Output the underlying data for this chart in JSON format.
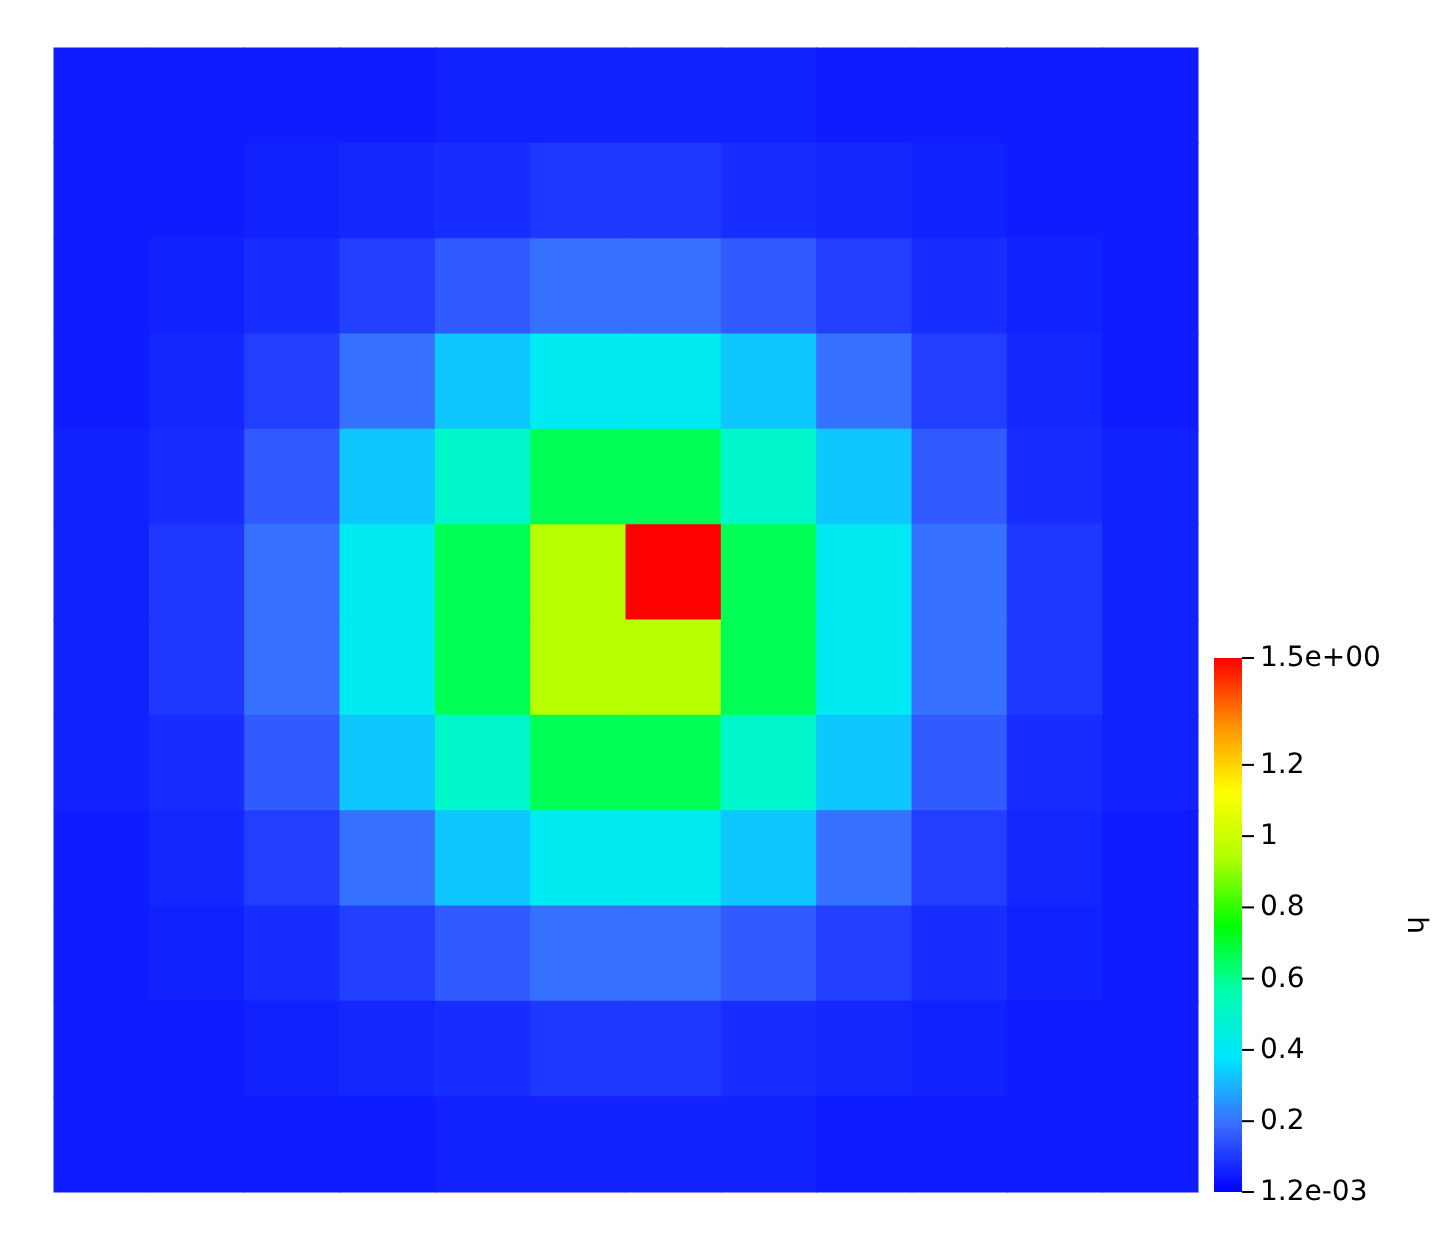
{
  "chart_data": {
    "type": "heatmap",
    "clabel": "h",
    "categories": [
      null,
      null,
      null,
      null,
      null,
      null,
      null,
      null,
      null,
      null,
      null,
      null
    ],
    "y_categories": [
      null,
      null,
      null,
      null,
      null,
      null,
      null,
      null,
      null,
      null,
      null,
      null
    ],
    "cells": [
      [
        0.05,
        0.05,
        0.05,
        0.05,
        0.06,
        0.06,
        0.06,
        0.06,
        0.05,
        0.05,
        0.05,
        0.05
      ],
      [
        0.05,
        0.05,
        0.06,
        0.07,
        0.08,
        0.1,
        0.1,
        0.08,
        0.07,
        0.06,
        0.05,
        0.05
      ],
      [
        0.05,
        0.06,
        0.08,
        0.11,
        0.16,
        0.2,
        0.2,
        0.16,
        0.11,
        0.08,
        0.06,
        0.05
      ],
      [
        0.05,
        0.07,
        0.11,
        0.2,
        0.33,
        0.41,
        0.41,
        0.33,
        0.2,
        0.11,
        0.07,
        0.05
      ],
      [
        0.06,
        0.08,
        0.16,
        0.33,
        0.5,
        0.66,
        0.66,
        0.5,
        0.33,
        0.16,
        0.08,
        0.06
      ],
      [
        0.06,
        0.1,
        0.2,
        0.41,
        0.66,
        0.95,
        1.5,
        0.66,
        0.41,
        0.2,
        0.1,
        0.06
      ],
      [
        0.06,
        0.1,
        0.2,
        0.41,
        0.66,
        0.95,
        0.95,
        0.66,
        0.41,
        0.2,
        0.1,
        0.06
      ],
      [
        0.06,
        0.08,
        0.16,
        0.33,
        0.5,
        0.66,
        0.66,
        0.5,
        0.33,
        0.16,
        0.08,
        0.06
      ],
      [
        0.05,
        0.07,
        0.11,
        0.2,
        0.33,
        0.41,
        0.41,
        0.33,
        0.2,
        0.11,
        0.07,
        0.05
      ],
      [
        0.05,
        0.06,
        0.08,
        0.11,
        0.16,
        0.2,
        0.2,
        0.16,
        0.11,
        0.08,
        0.06,
        0.05
      ],
      [
        0.05,
        0.05,
        0.06,
        0.07,
        0.08,
        0.1,
        0.1,
        0.08,
        0.07,
        0.06,
        0.05,
        0.05
      ],
      [
        0.05,
        0.05,
        0.05,
        0.05,
        0.06,
        0.06,
        0.06,
        0.06,
        0.05,
        0.05,
        0.05,
        0.05
      ]
    ],
    "clim": [
      0.0012,
      1.5
    ],
    "cticks": [
      {
        "value": 0.0012,
        "label": "1.2e-03"
      },
      0.2,
      0.4,
      0.6,
      0.8,
      1,
      1.2,
      {
        "value": 1.5,
        "label": "1.5e+00"
      }
    ]
  }
}
